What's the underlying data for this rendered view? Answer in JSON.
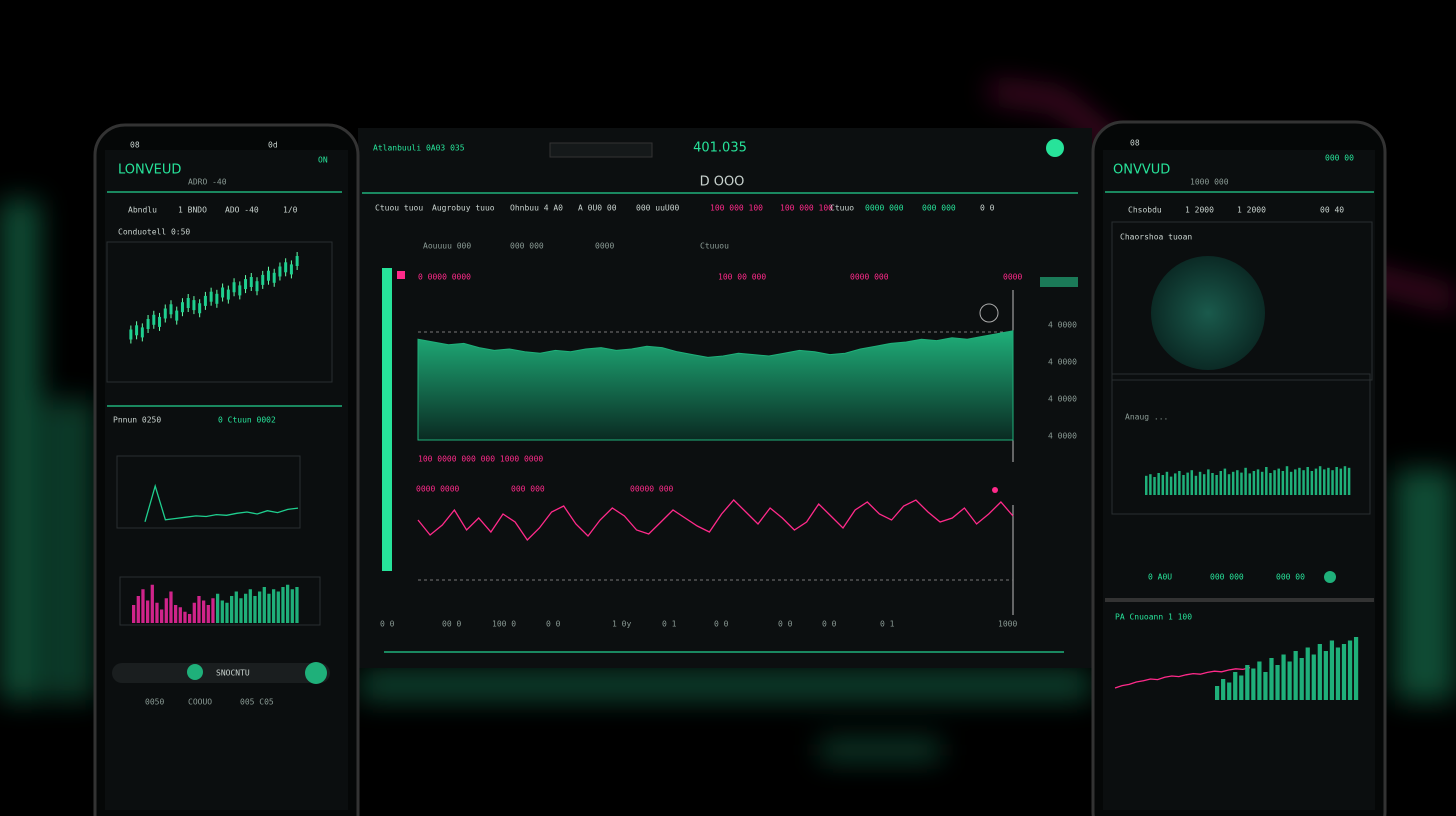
{
  "left_phone": {
    "status": "08",
    "status_right": "0d",
    "app_name": "LONVEUD",
    "badge": "ON",
    "subtitle": "ADRO -40",
    "tabs": [
      "Abndlu",
      "1 BNDO",
      "ADO -40",
      "1/0"
    ],
    "section_1": "Conduotell 0:50",
    "candles": {
      "values": [
        10,
        14,
        12,
        20,
        24,
        22,
        30,
        34,
        28,
        36,
        40,
        38,
        35,
        42,
        46,
        44,
        50,
        48,
        55,
        52,
        58,
        60,
        56,
        62,
        66,
        64,
        70,
        74,
        72,
        80
      ],
      "ylim": [
        0,
        100
      ],
      "color": "#1fcf8f"
    },
    "section_2": "Pnnun 0250",
    "section_2_right": "0 Ctuun 0002",
    "line": {
      "values": [
        5,
        60,
        8,
        10,
        12,
        14,
        13,
        16,
        15,
        18,
        20,
        17,
        22,
        19,
        24,
        26
      ],
      "ylim": [
        0,
        100
      ],
      "color": "#1fcf8f"
    },
    "bars_pink": {
      "values": [
        40,
        60,
        75,
        50,
        85,
        45,
        30,
        55,
        70,
        40,
        35,
        25,
        20,
        45,
        60,
        50,
        40,
        55
      ],
      "ylim": [
        0,
        100
      ],
      "color": "#d0248a"
    },
    "bars_green": {
      "values": [
        65,
        50,
        45,
        60,
        70,
        55,
        65,
        75,
        60,
        70,
        80,
        65,
        75,
        70,
        80,
        85,
        75,
        80
      ],
      "ylim": [
        0,
        100
      ],
      "color": "#1fb07a"
    },
    "button": "SNOCNTU",
    "footer": [
      "0050",
      "COOUO",
      "005 C05"
    ]
  },
  "center_monitor": {
    "title": "Atlanbuuli 0A03 035",
    "price": "401.035",
    "nav": "D OOO",
    "columns": [
      "Ctuou tuou",
      "Augrobuy tuuo",
      "Ohnbuu 4 A0",
      "A 0U0 00",
      "000 uuU00",
      "100 000 100",
      "100 000 100",
      "Ctuuo",
      "0000 000",
      "000 000",
      "0 0"
    ],
    "legend": [
      "Aouuuu 000",
      "000 000",
      "0000",
      "Ctuuou"
    ],
    "chart_head": [
      "0 0000 0000",
      "100 00 000",
      "0000 000",
      "0000"
    ],
    "area": {
      "values": [
        72,
        70,
        68,
        69,
        66,
        64,
        65,
        63,
        62,
        64,
        63,
        65,
        66,
        64,
        65,
        67,
        66,
        63,
        61,
        59,
        60,
        62,
        61,
        60,
        62,
        64,
        63,
        61,
        62,
        65,
        67,
        69,
        70,
        72,
        71,
        73,
        72,
        74,
        76,
        78
      ],
      "ylim": [
        0,
        100
      ],
      "color": "#1fb07a"
    },
    "area_note": "100 0000 000 000 1000 0000",
    "line_head": [
      "0000 0000",
      "000 000",
      "00000 000"
    ],
    "line": {
      "values": [
        60,
        45,
        55,
        70,
        50,
        62,
        48,
        66,
        58,
        40,
        52,
        68,
        74,
        56,
        44,
        60,
        72,
        64,
        50,
        46,
        58,
        70,
        62,
        54,
        48,
        66,
        80,
        68,
        56,
        72,
        62,
        50,
        58,
        76,
        64,
        52,
        70,
        78,
        66,
        60,
        74,
        80,
        68,
        58,
        62,
        72,
        56,
        66,
        78,
        64
      ],
      "ylim": [
        0,
        100
      ],
      "color": "#ff2a8a"
    },
    "right_labels": [
      "4 0000",
      "4 0000",
      "4 0000",
      "4 0000"
    ],
    "x_labels": [
      "0 0",
      "00 0",
      "100 0",
      "0 0",
      "1 0y",
      "0 1",
      "0 0",
      "0 0",
      "0 0",
      "0 1",
      "1000"
    ]
  },
  "right_phone": {
    "status": "08",
    "app_name": "ONVVUD",
    "badge": "000 00",
    "subtitle": "1000 000",
    "tabs": [
      "Chsobdu",
      "1 2000",
      "1 2000",
      "00 40"
    ],
    "section_1": "Chaorshoa tuoan",
    "section_2": "Anaug ...",
    "bars": {
      "values": [
        48,
        52,
        45,
        55,
        50,
        58,
        46,
        54,
        60,
        50,
        56,
        62,
        48,
        58,
        52,
        64,
        55,
        50,
        60,
        66,
        52,
        58,
        62,
        56,
        68,
        54,
        60,
        64,
        58,
        70,
        55,
        62,
        66,
        60,
        72,
        58,
        64,
        68,
        62,
        70,
        60,
        66,
        72,
        64,
        68,
        62,
        70,
        66,
        72,
        68
      ],
      "ylim": [
        0,
        100
      ],
      "color": "#1fb07a"
    },
    "legend": [
      "0 A0U",
      "000 000",
      "000 00"
    ],
    "section_3": "PA Cnuoann 1 100",
    "line": {
      "values": [
        20,
        24,
        26,
        30,
        32,
        35,
        34,
        38,
        40,
        39,
        42,
        44,
        43,
        46,
        48,
        47,
        50,
        52,
        51,
        54
      ],
      "ylim": [
        0,
        100
      ],
      "color": "#ff2a8a"
    },
    "bars_2": {
      "values": [
        20,
        30,
        25,
        40,
        35,
        50,
        45,
        55,
        40,
        60,
        50,
        65,
        55,
        70,
        60,
        75,
        65,
        80,
        70,
        85,
        75,
        80,
        85,
        90
      ],
      "ylim": [
        0,
        100
      ],
      "color": "#1fb07a"
    }
  }
}
